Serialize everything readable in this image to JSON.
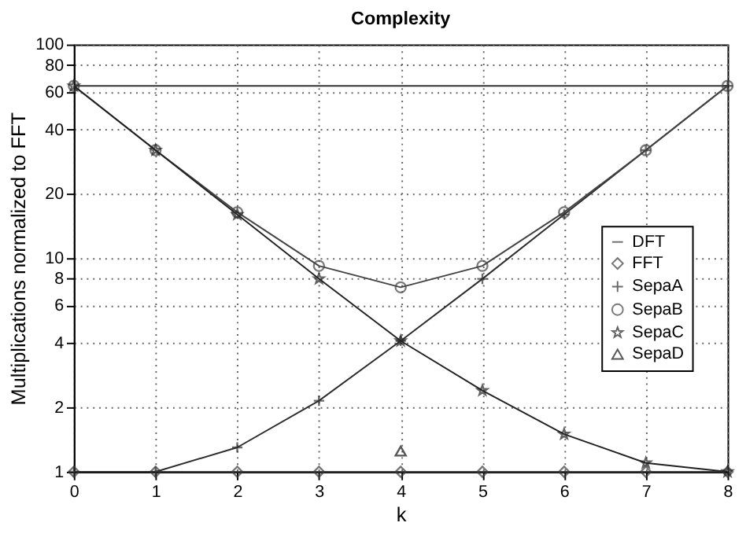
{
  "chart_data": {
    "type": "line",
    "title": "Complexity",
    "xlabel": "k",
    "ylabel": "Multiplications normalized to FFT",
    "x": [
      0,
      1,
      2,
      3,
      4,
      5,
      6,
      7,
      8
    ],
    "series": [
      {
        "name": "DFT",
        "color": "#333333",
        "marker": "none",
        "values": [
          64,
          64,
          64,
          64,
          64,
          64,
          64,
          64,
          64
        ]
      },
      {
        "name": "FFT",
        "color": "#3a3a3a",
        "marker": "diamond",
        "values": [
          1,
          1,
          1,
          1,
          1,
          1,
          1,
          1,
          1
        ]
      },
      {
        "name": "SepaA",
        "color": "#2c2c2c",
        "marker": "cross",
        "values": [
          1,
          1,
          1.3,
          2.15,
          4.1,
          8,
          16,
          32,
          64
        ]
      },
      {
        "name": "SepaB",
        "color": "#444444",
        "marker": "circle",
        "values": [
          64,
          32,
          16.4,
          9.2,
          7.3,
          9.2,
          16.4,
          32,
          64
        ]
      },
      {
        "name": "SepaC",
        "color": "#222222",
        "marker": "star",
        "values": [
          64,
          32,
          16,
          8,
          4.1,
          2.4,
          1.5,
          1.1,
          1
        ]
      },
      {
        "name": "SepaD",
        "color": "#111111",
        "marker": "triangle",
        "x": [
          4
        ],
        "values": [
          1.25
        ]
      }
    ],
    "xlim": [
      0,
      8
    ],
    "xticks": [
      0,
      1,
      2,
      3,
      4,
      5,
      6,
      7,
      8
    ],
    "ylim": [
      1,
      100
    ],
    "yticks": [
      1,
      2,
      4,
      6,
      8,
      10,
      20,
      40,
      60,
      80,
      100
    ],
    "log": "y",
    "grid": true,
    "legend": "right",
    "line_style": "solid"
  }
}
